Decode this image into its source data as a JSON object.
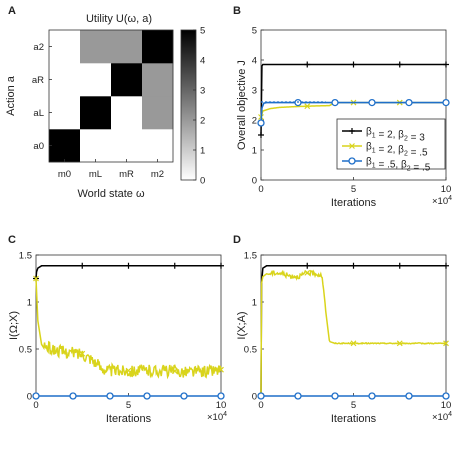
{
  "chart_data": [
    {
      "panel": "A",
      "type": "heatmap",
      "title": "Utility U(ω, a)",
      "xlabel": "World state ω",
      "ylabel": "Action a",
      "x_categories": [
        "m0",
        "mL",
        "mR",
        "m2"
      ],
      "y_categories": [
        "a0",
        "aL",
        "aR",
        "a2"
      ],
      "values": [
        [
          5,
          0,
          0,
          0
        ],
        [
          0,
          5,
          0,
          2
        ],
        [
          0,
          0,
          5,
          2
        ],
        [
          0,
          2,
          2,
          5
        ]
      ],
      "colorbar_ticks": [
        "0",
        "1",
        "2",
        "3",
        "4",
        "5"
      ],
      "colorbar_range": [
        0,
        5
      ]
    },
    {
      "panel": "B",
      "type": "line",
      "xlabel": "Iterations",
      "ylabel": "Overall objective J",
      "x_multiplier": "×10^4",
      "xlim": [
        0,
        100000
      ],
      "ylim": [
        0,
        5
      ],
      "xticks": [
        "0",
        "5",
        "10"
      ],
      "yticks": [
        "0",
        "1",
        "2",
        "3",
        "4",
        "5"
      ],
      "legend_position": "right",
      "series": [
        {
          "name": "β1 = 2, β2 = 3",
          "color": "#000000",
          "marker": "plus",
          "x": [
            0,
            500,
            1000,
            3000,
            100000
          ],
          "y": [
            1.5,
            3.8,
            3.85,
            3.85,
            3.85
          ]
        },
        {
          "name": "β1 = 2, β2 = .5",
          "color": "#d9d41c",
          "marker": "x",
          "x": [
            0,
            1000,
            5000,
            10000,
            20000,
            30000,
            37000,
            40000,
            100000
          ],
          "y": [
            2.1,
            2.3,
            2.38,
            2.42,
            2.45,
            2.47,
            2.48,
            2.58,
            2.58
          ]
        },
        {
          "name": "β1 =.5, β2 =.5",
          "color": "#1f6fc9",
          "marker": "circle",
          "x": [
            0,
            500,
            1500,
            3000,
            100000
          ],
          "y": [
            1.9,
            2.4,
            2.56,
            2.58,
            2.58
          ]
        }
      ]
    },
    {
      "panel": "C",
      "type": "line",
      "xlabel": "Iterations",
      "ylabel": "I(Ω;X)",
      "x_multiplier": "×10^4",
      "xlim": [
        0,
        100000
      ],
      "ylim": [
        0,
        1.5
      ],
      "xticks": [
        "0",
        "5",
        "10"
      ],
      "yticks": [
        "0",
        "0.5",
        "1",
        "1.5"
      ],
      "series": [
        {
          "name": "β1 = 2, β2 = 3",
          "color": "#000000",
          "marker": "plus",
          "x": [
            0,
            300,
            1000,
            3000,
            100000
          ],
          "y": [
            1.25,
            1.32,
            1.36,
            1.385,
            1.386
          ]
        },
        {
          "name": "β1 = 2, β2 = .5",
          "color": "#d9d41c",
          "marker": "x",
          "x": [
            0,
            1000,
            3000,
            8000,
            15000,
            25000,
            30000,
            35000,
            40000,
            50000,
            60000,
            70000,
            80000,
            90000,
            100000
          ],
          "y": [
            1.25,
            0.8,
            0.55,
            0.5,
            0.47,
            0.45,
            0.4,
            0.3,
            0.27,
            0.27,
            0.27,
            0.27,
            0.26,
            0.26,
            0.28
          ]
        },
        {
          "name": "β1 =.5, β2 =.5",
          "color": "#1f6fc9",
          "marker": "circle",
          "x": [
            0,
            100000
          ],
          "y": [
            0.0,
            0.0
          ]
        }
      ]
    },
    {
      "panel": "D",
      "type": "line",
      "xlabel": "Iterations",
      "ylabel": "I(X;A)",
      "x_multiplier": "×10^4",
      "xlim": [
        0,
        100000
      ],
      "ylim": [
        0,
        1.5
      ],
      "xticks": [
        "0",
        "5",
        "10"
      ],
      "yticks": [
        "0",
        "0.5",
        "1",
        "1.5"
      ],
      "series": [
        {
          "name": "β1 = 2, β2 = 3",
          "color": "#000000",
          "marker": "plus",
          "x": [
            0,
            300,
            1000,
            3000,
            100000
          ],
          "y": [
            0.0,
            1.2,
            1.36,
            1.385,
            1.386
          ]
        },
        {
          "name": "β1 = 2, β2 = .5",
          "color": "#d9d41c",
          "marker": "x",
          "x": [
            0,
            300,
            1000,
            3000,
            8000,
            12000,
            15000,
            20000,
            25000,
            30000,
            33000,
            35000,
            37000,
            40000,
            60000,
            80000,
            100000
          ],
          "y": [
            0.0,
            1.2,
            1.27,
            1.3,
            1.31,
            1.3,
            1.28,
            1.27,
            1.31,
            1.3,
            1.28,
            0.9,
            0.58,
            0.56,
            0.56,
            0.56,
            0.56
          ]
        },
        {
          "name": "β1 =.5, β2 =.5",
          "color": "#1f6fc9",
          "marker": "circle",
          "x": [
            0,
            100000
          ],
          "y": [
            0.0,
            0.0
          ]
        }
      ]
    }
  ]
}
